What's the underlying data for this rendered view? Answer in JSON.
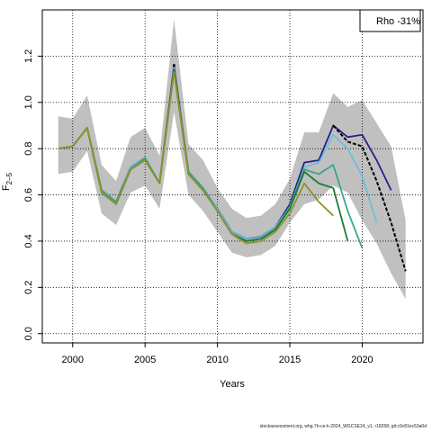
{
  "chart_data": {
    "type": "line",
    "xlabel": "Years",
    "ylabel": "F",
    "ylabel_sub": "2–5",
    "xlim": [
      1997.9,
      2024.2
    ],
    "ylim": [
      -0.04,
      1.4
    ],
    "x_ticks": [
      2000,
      2005,
      2010,
      2015,
      2020
    ],
    "y_ticks": [
      0.0,
      0.2,
      0.4,
      0.6,
      0.8,
      1.0,
      1.2
    ],
    "grid": true,
    "legend": "Rho -31%",
    "legend_position": "top-right",
    "band": {
      "color": "#c0c0c0",
      "x": [
        1999,
        2000,
        2001,
        2002,
        2003,
        2004,
        2005,
        2006,
        2007,
        2008,
        2009,
        2010,
        2011,
        2012,
        2013,
        2014,
        2015,
        2016,
        2017,
        2018,
        2019,
        2020,
        2021,
        2022,
        2023
      ],
      "upper": [
        0.94,
        0.93,
        1.03,
        0.73,
        0.66,
        0.85,
        0.89,
        0.77,
        1.36,
        0.82,
        0.75,
        0.63,
        0.54,
        0.5,
        0.51,
        0.56,
        0.67,
        0.87,
        0.87,
        1.04,
        0.98,
        1.01,
        0.91,
        0.81,
        0.49
      ],
      "lower": [
        0.69,
        0.7,
        0.79,
        0.52,
        0.47,
        0.61,
        0.64,
        0.54,
        0.96,
        0.6,
        0.53,
        0.44,
        0.35,
        0.33,
        0.34,
        0.38,
        0.48,
        0.56,
        0.58,
        0.64,
        0.61,
        0.49,
        0.39,
        0.26,
        0.15
      ]
    },
    "series": [
      {
        "color": "#2a1f8a",
        "width": 1.8,
        "dash": "none",
        "x": [
          1999,
          2000,
          2001,
          2002,
          2003,
          2004,
          2005,
          2006,
          2007,
          2008,
          2009,
          2010,
          2011,
          2012,
          2013,
          2014,
          2015,
          2016,
          2017,
          2018,
          2019,
          2020,
          2021,
          2022
        ],
        "y": [
          0.8,
          0.81,
          0.89,
          0.62,
          0.57,
          0.72,
          0.76,
          0.65,
          1.16,
          0.7,
          0.63,
          0.54,
          0.44,
          0.41,
          0.42,
          0.46,
          0.56,
          0.74,
          0.75,
          0.9,
          0.85,
          0.86,
          0.75,
          0.62
        ]
      },
      {
        "color": "#5bc0de",
        "width": 1.5,
        "dash": "none",
        "x": [
          1999,
          2000,
          2001,
          2002,
          2003,
          2004,
          2005,
          2006,
          2007,
          2008,
          2009,
          2010,
          2011,
          2012,
          2013,
          2014,
          2015,
          2016,
          2017,
          2018,
          2019,
          2020,
          2021
        ],
        "y": [
          0.8,
          0.81,
          0.89,
          0.62,
          0.57,
          0.72,
          0.76,
          0.65,
          1.15,
          0.7,
          0.63,
          0.54,
          0.44,
          0.41,
          0.42,
          0.46,
          0.55,
          0.72,
          0.74,
          0.86,
          0.8,
          0.68,
          0.48
        ]
      },
      {
        "color": "#3aa58e",
        "width": 1.8,
        "dash": "none",
        "x": [
          1999,
          2000,
          2001,
          2002,
          2003,
          2004,
          2005,
          2006,
          2007,
          2008,
          2009,
          2010,
          2011,
          2012,
          2013,
          2014,
          2015,
          2016,
          2017,
          2018,
          2019,
          2020
        ],
        "y": [
          0.8,
          0.81,
          0.89,
          0.62,
          0.57,
          0.71,
          0.76,
          0.65,
          1.14,
          0.7,
          0.63,
          0.53,
          0.43,
          0.4,
          0.41,
          0.45,
          0.55,
          0.71,
          0.69,
          0.73,
          0.53,
          0.37
        ]
      },
      {
        "color": "#1e7a38",
        "width": 1.8,
        "dash": "none",
        "x": [
          1999,
          2000,
          2001,
          2002,
          2003,
          2004,
          2005,
          2006,
          2007,
          2008,
          2009,
          2010,
          2011,
          2012,
          2013,
          2014,
          2015,
          2016,
          2017,
          2018,
          2019
        ],
        "y": [
          0.8,
          0.81,
          0.89,
          0.61,
          0.56,
          0.71,
          0.75,
          0.65,
          1.14,
          0.69,
          0.62,
          0.53,
          0.43,
          0.4,
          0.41,
          0.45,
          0.54,
          0.7,
          0.65,
          0.63,
          0.4
        ]
      },
      {
        "color": "#8f9422",
        "width": 1.8,
        "dash": "none",
        "x": [
          1999,
          2000,
          2001,
          2002,
          2003,
          2004,
          2005,
          2006,
          2007,
          2008,
          2009,
          2010,
          2011,
          2012,
          2013,
          2014,
          2015,
          2016,
          2017,
          2018
        ],
        "y": [
          0.8,
          0.81,
          0.89,
          0.61,
          0.56,
          0.71,
          0.75,
          0.65,
          1.13,
          0.69,
          0.62,
          0.53,
          0.43,
          0.39,
          0.4,
          0.44,
          0.52,
          0.65,
          0.57,
          0.51
        ]
      },
      {
        "color": "#000000",
        "width": 1.8,
        "dash": "none",
        "x": [
          2007
        ],
        "y": [
          1.16
        ]
      },
      {
        "color": "#000000",
        "width": 2.0,
        "dash": "4,2",
        "x": [
          2018,
          2019,
          2020,
          2021,
          2022,
          2023
        ],
        "y": [
          0.9,
          0.83,
          0.81,
          0.66,
          0.48,
          0.27
        ]
      }
    ]
  },
  "footer": "stockassessment.org, whg.7b-ce-k-2024_WGCSE24_v1, r18258, git:c9c81ec53a0d"
}
